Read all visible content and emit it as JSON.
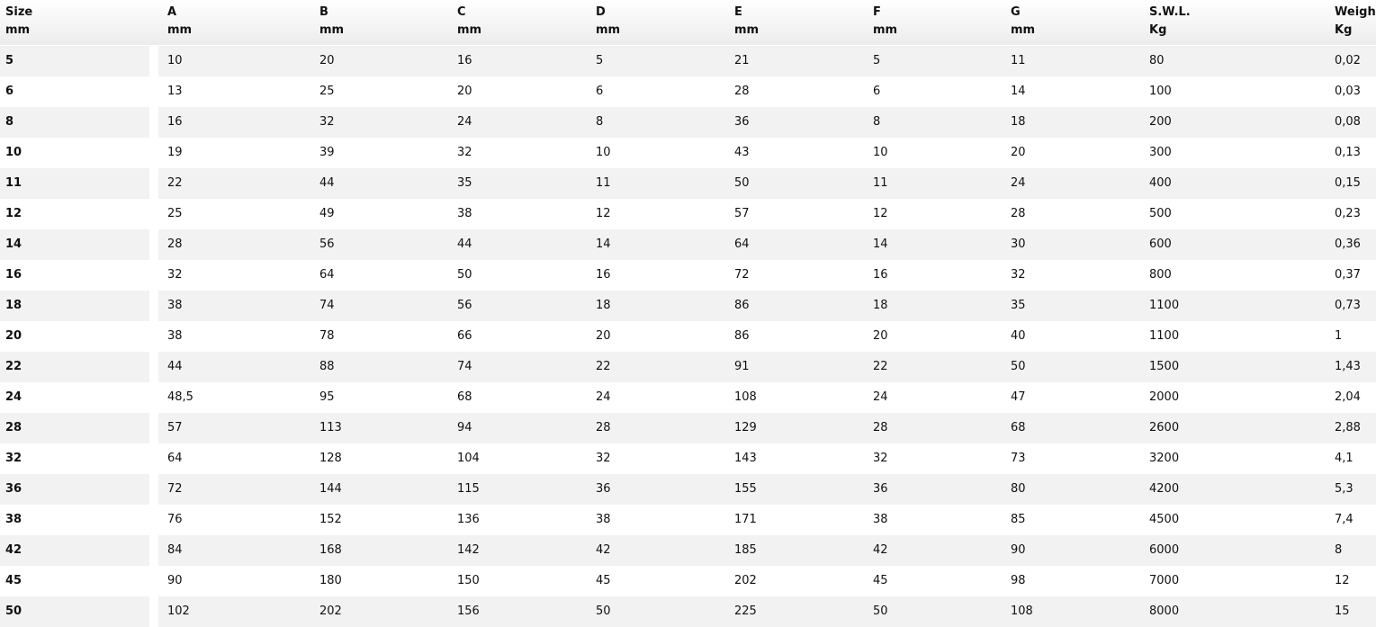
{
  "table": {
    "header": [
      [
        "Size",
        "mm"
      ],
      [
        "A",
        "mm"
      ],
      [
        "B",
        "mm"
      ],
      [
        "C",
        "mm"
      ],
      [
        "D",
        "mm"
      ],
      [
        "E",
        "mm"
      ],
      [
        "F",
        "mm"
      ],
      [
        "G",
        "mm"
      ],
      [
        "S.W.L.",
        "Kg"
      ],
      [
        "Weigh",
        "Kg"
      ]
    ],
    "rows": [
      [
        "5",
        "10",
        "20",
        "16",
        "5",
        "21",
        "5",
        "11",
        "80",
        "0,02"
      ],
      [
        "6",
        "13",
        "25",
        "20",
        "6",
        "28",
        "6",
        "14",
        "100",
        "0,03"
      ],
      [
        "8",
        "16",
        "32",
        "24",
        "8",
        "36",
        "8",
        "18",
        "200",
        "0,08"
      ],
      [
        "10",
        "19",
        "39",
        "32",
        "10",
        "43",
        "10",
        "20",
        "300",
        "0,13"
      ],
      [
        "11",
        "22",
        "44",
        "35",
        "11",
        "50",
        "11",
        "24",
        "400",
        "0,15"
      ],
      [
        "12",
        "25",
        "49",
        "38",
        "12",
        "57",
        "12",
        "28",
        "500",
        "0,23"
      ],
      [
        "14",
        "28",
        "56",
        "44",
        "14",
        "64",
        "14",
        "30",
        "600",
        "0,36"
      ],
      [
        "16",
        "32",
        "64",
        "50",
        "16",
        "72",
        "16",
        "32",
        "800",
        "0,37"
      ],
      [
        "18",
        "38",
        "74",
        "56",
        "18",
        "86",
        "18",
        "35",
        "1100",
        "0,73"
      ],
      [
        "20",
        "38",
        "78",
        "66",
        "20",
        "86",
        "20",
        "40",
        "1100",
        "1"
      ],
      [
        "22",
        "44",
        "88",
        "74",
        "22",
        "91",
        "22",
        "50",
        "1500",
        "1,43"
      ],
      [
        "24",
        "48,5",
        "95",
        "68",
        "24",
        "108",
        "24",
        "47",
        "2000",
        "2,04"
      ],
      [
        "28",
        "57",
        "113",
        "94",
        "28",
        "129",
        "28",
        "68",
        "2600",
        "2,88"
      ],
      [
        "32",
        "64",
        "128",
        "104",
        "32",
        "143",
        "32",
        "73",
        "3200",
        "4,1"
      ],
      [
        "36",
        "72",
        "144",
        "115",
        "36",
        "155",
        "36",
        "80",
        "4200",
        "5,3"
      ],
      [
        "38",
        "76",
        "152",
        "136",
        "38",
        "171",
        "38",
        "85",
        "4500",
        "7,4"
      ],
      [
        "42",
        "84",
        "168",
        "142",
        "42",
        "185",
        "42",
        "90",
        "6000",
        "8"
      ],
      [
        "45",
        "90",
        "180",
        "150",
        "45",
        "202",
        "45",
        "98",
        "7000",
        "12"
      ],
      [
        "50",
        "102",
        "202",
        "156",
        "50",
        "225",
        "50",
        "108",
        "8000",
        "15"
      ]
    ]
  }
}
